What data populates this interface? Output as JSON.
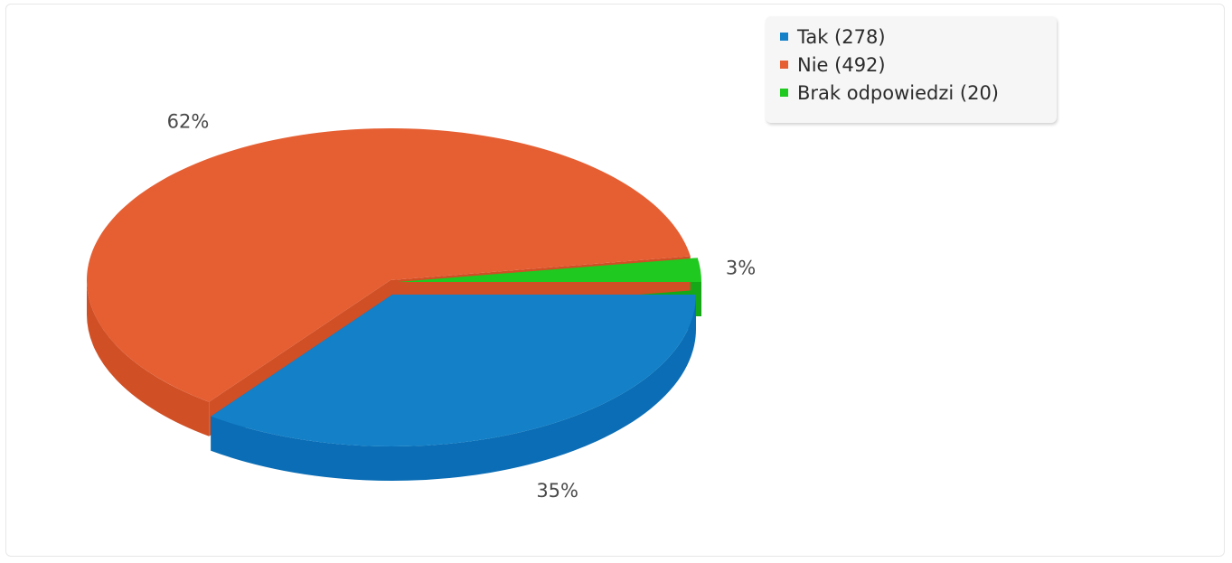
{
  "chart_data": {
    "type": "pie",
    "title": "",
    "legend_position": "top-right",
    "slices": [
      {
        "name": "Tak",
        "value": 278,
        "percent_label": "35%",
        "color": "#1380c8",
        "side_color": "#0a6db5",
        "legend_label": "Tak (278)"
      },
      {
        "name": "Nie",
        "value": 492,
        "percent_label": "62%",
        "color": "#e55f33",
        "side_color": "#d04f25",
        "legend_label": "Nie (492)"
      },
      {
        "name": "Brak odpowiedzi",
        "value": 20,
        "percent_label": "3%",
        "color": "#1fc91f",
        "side_color": "#16a816",
        "legend_label": "Brak odpowiedzi (20)"
      }
    ]
  }
}
